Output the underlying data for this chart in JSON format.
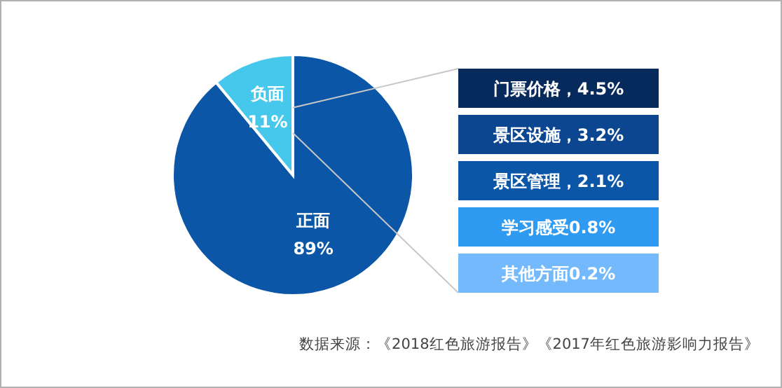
{
  "chart_data": [
    {
      "type": "pie",
      "categories": [
        "正面",
        "负面"
      ],
      "values": [
        89,
        11
      ],
      "colors": [
        "#0b56a6",
        "#46c8ec"
      ],
      "value_labels": [
        "89%",
        "11%"
      ],
      "annotations": [
        "数据来源：《2018红色旅游报告》《2017年红色旅游影响力报告》"
      ]
    },
    {
      "type": "other",
      "categories": [
        "门票价格，4.5%",
        "景区设施，3.2%",
        "景区管理，2.1%",
        "学习感受0.8%",
        "其他方面0.2%"
      ],
      "colors": [
        "#062a5c",
        "#0d4690",
        "#0b56a6",
        "#2e9af2",
        "#74b9fb"
      ]
    }
  ]
}
